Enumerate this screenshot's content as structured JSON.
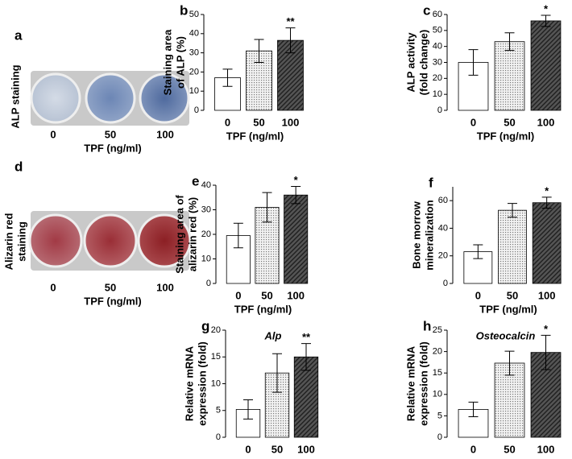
{
  "photo_panels": [
    {
      "panel": "a",
      "label": [
        "ALP staining"
      ],
      "categories": [
        "0",
        "50",
        "100"
      ],
      "xlabel": "TPF (ng/ml)"
    },
    {
      "panel": "d",
      "label": [
        "Alizarin red",
        "staining"
      ],
      "categories": [
        "0",
        "50",
        "100"
      ],
      "xlabel": "TPF (ng/ml)"
    }
  ],
  "chart_data": [
    {
      "type": "bar",
      "panel": "b",
      "ylabel": [
        "Staining area",
        "of ALP (%)"
      ],
      "xlabel": "TPF (ng/ml)",
      "categories": [
        "0",
        "50",
        "100"
      ],
      "values": [
        17,
        31,
        36.5
      ],
      "errors": [
        4.5,
        6,
        6.5
      ],
      "significance": [
        null,
        null,
        "**"
      ],
      "ylim": [
        0,
        50
      ],
      "yticks": [
        0,
        10,
        20,
        30,
        40,
        50
      ]
    },
    {
      "type": "bar",
      "panel": "c",
      "ylabel": [
        "ALP activity",
        "(fold change)"
      ],
      "xlabel": "TPF (ng/ml)",
      "categories": [
        "0",
        "50",
        "100"
      ],
      "values": [
        30,
        43,
        56
      ],
      "errors": [
        8,
        5.5,
        3.5
      ],
      "significance": [
        null,
        null,
        "*"
      ],
      "ylim": [
        0,
        60
      ],
      "yticks": [
        0,
        10,
        20,
        30,
        40,
        50,
        60
      ]
    },
    {
      "type": "bar",
      "panel": "e",
      "ylabel": [
        "Staining area of",
        "alizarin red (%)"
      ],
      "xlabel": "TPF (ng/ml)",
      "categories": [
        "0",
        "50",
        "100"
      ],
      "values": [
        19.5,
        31,
        36
      ],
      "errors": [
        5,
        6,
        3.5
      ],
      "significance": [
        null,
        null,
        "*"
      ],
      "ylim": [
        0,
        40
      ],
      "yticks": [
        0,
        10,
        20,
        30,
        40
      ]
    },
    {
      "type": "bar",
      "panel": "f",
      "ylabel": [
        "Bone morrow",
        "mineralization"
      ],
      "xlabel": "TPF (ng/ml)",
      "categories": [
        "0",
        "50",
        "100"
      ],
      "values": [
        23,
        53,
        58.5
      ],
      "errors": [
        5,
        5,
        4
      ],
      "significance": [
        null,
        null,
        "*"
      ],
      "ylim": [
        0,
        70
      ],
      "yticks": [
        0,
        20,
        40,
        60
      ]
    },
    {
      "type": "bar",
      "panel": "g",
      "gene": "Alp",
      "ylabel": [
        "Relative mRNA",
        "expression (fold)"
      ],
      "xlabel": "TPF (ng/ml)",
      "categories": [
        "0",
        "50",
        "100"
      ],
      "values": [
        5.2,
        12,
        15
      ],
      "errors": [
        1.8,
        3.6,
        2.5
      ],
      "significance": [
        null,
        null,
        "**"
      ],
      "ylim": [
        0,
        20
      ],
      "yticks": [
        0,
        5,
        10,
        15,
        20
      ]
    },
    {
      "type": "bar",
      "panel": "h",
      "gene": "Osteocalcin",
      "ylabel": [
        "Relative mRNA",
        "expression (fold)"
      ],
      "xlabel": "TPF (ng/ml)",
      "categories": [
        "0",
        "50",
        "100"
      ],
      "values": [
        6.5,
        17.3,
        19.8
      ],
      "errors": [
        1.7,
        2.8,
        4
      ],
      "significance": [
        null,
        null,
        "*"
      ],
      "ylim": [
        0,
        25
      ],
      "yticks": [
        0,
        5,
        10,
        15,
        20,
        25
      ]
    }
  ]
}
